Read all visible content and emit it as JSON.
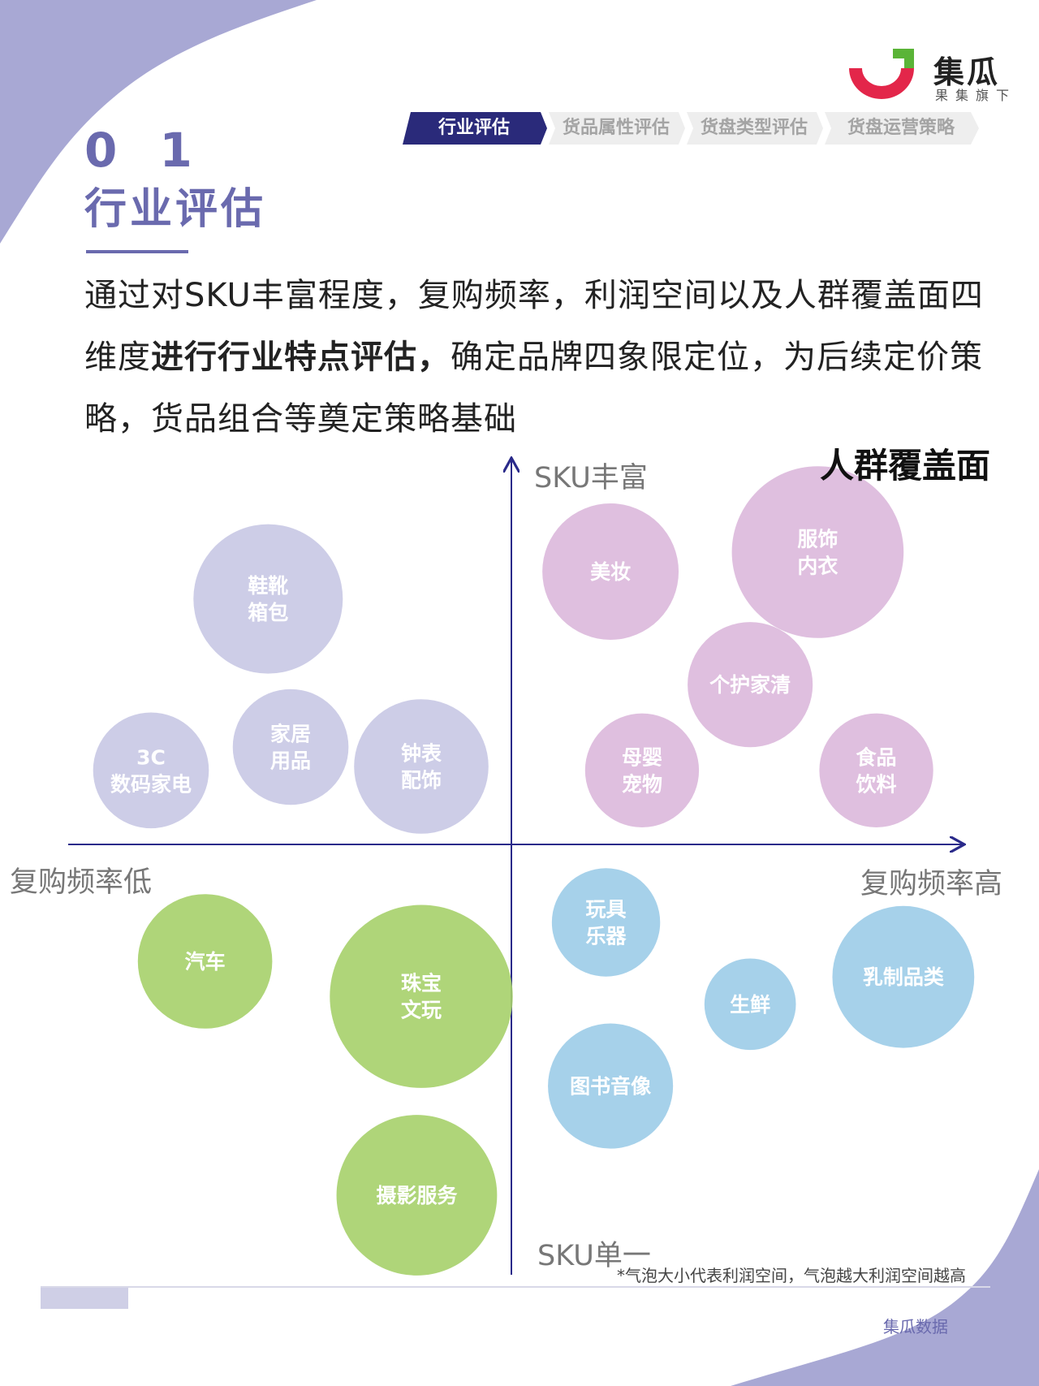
{
  "brand": {
    "name": "集瓜",
    "tagline": "果集旗下",
    "footer": "集瓜数据",
    "colors": {
      "red": "#e3264a",
      "green": "#5ab437",
      "purple": "#6a6aae"
    }
  },
  "tabs": [
    {
      "label": "行业评估",
      "active": true
    },
    {
      "label": "货品属性评估",
      "active": false
    },
    {
      "label": "货盘类型评估",
      "active": false
    },
    {
      "label": "货盘运营策略",
      "active": false
    }
  ],
  "section": {
    "number": "0 1",
    "title": "行业评估"
  },
  "intro": {
    "part1": "通过对SKU丰富程度，复购频率，利润空间以及人群覆盖面四维度",
    "bold": "进行行业特点评估，",
    "part2": "确定品牌四象限定位，为后续定价策略，货品组合等奠定策略基础"
  },
  "chart_data": {
    "type": "bubble-quadrant",
    "legend_title": "人群覆盖面",
    "axes": {
      "y_top": "SKU丰富",
      "y_bottom": "SKU单一",
      "x_left": "复购频率低",
      "x_right": "复购频率高"
    },
    "footnote": "*气泡大小代表利润空间，气泡越大利润空间越高",
    "bubbles": [
      {
        "label": [
          "鞋靴",
          "箱包"
        ],
        "quadrant": "top-left",
        "x": -0.54,
        "y": 0.63,
        "size": 0.8,
        "color": "#c8c8e4"
      },
      {
        "label": [
          "3C",
          "数码家电"
        ],
        "quadrant": "top-left",
        "x": -0.8,
        "y": 0.19,
        "size": 0.62,
        "color": "#c8c8e4"
      },
      {
        "label": [
          "家居",
          "用品"
        ],
        "quadrant": "top-left",
        "x": -0.49,
        "y": 0.25,
        "size": 0.62,
        "color": "#c8c8e4"
      },
      {
        "label": [
          "钟表",
          "配饰"
        ],
        "quadrant": "top-left",
        "x": -0.2,
        "y": 0.2,
        "size": 0.72,
        "color": "#c8c8e4"
      },
      {
        "label": [
          "美妆"
        ],
        "quadrant": "top-right",
        "x": 0.22,
        "y": 0.7,
        "size": 0.73,
        "color": "#dcb8dc"
      },
      {
        "label": [
          "服饰",
          "内衣"
        ],
        "quadrant": "top-right",
        "x": 0.68,
        "y": 0.75,
        "size": 0.92,
        "color": "#dcb8dc"
      },
      {
        "label": [
          "个护家清"
        ],
        "quadrant": "top-right",
        "x": 0.53,
        "y": 0.41,
        "size": 0.67,
        "color": "#dcb8dc"
      },
      {
        "label": [
          "母婴",
          "宠物"
        ],
        "quadrant": "top-right",
        "x": 0.29,
        "y": 0.19,
        "size": 0.61,
        "color": "#dcb8dc"
      },
      {
        "label": [
          "食品",
          "饮料"
        ],
        "quadrant": "top-right",
        "x": 0.81,
        "y": 0.19,
        "size": 0.61,
        "color": "#dcb8dc"
      },
      {
        "label": [
          "汽车"
        ],
        "quadrant": "bottom-left",
        "x": -0.68,
        "y": -0.3,
        "size": 0.72,
        "color": "#a6d06a"
      },
      {
        "label": [
          "珠宝",
          "文玩"
        ],
        "quadrant": "bottom-left",
        "x": -0.2,
        "y": -0.39,
        "size": 0.98,
        "color": "#a6d06a"
      },
      {
        "label": [
          "摄影服务"
        ],
        "quadrant": "bottom-left",
        "x": -0.21,
        "y": -0.9,
        "size": 0.86,
        "color": "#a6d06a"
      },
      {
        "label": [
          "玩具",
          "乐器"
        ],
        "quadrant": "bottom-right",
        "x": 0.21,
        "y": -0.2,
        "size": 0.58,
        "color": "#9ccce8"
      },
      {
        "label": [
          "生鲜"
        ],
        "quadrant": "bottom-right",
        "x": 0.53,
        "y": -0.41,
        "size": 0.49,
        "color": "#9ccce8"
      },
      {
        "label": [
          "乳制品类"
        ],
        "quadrant": "bottom-right",
        "x": 0.87,
        "y": -0.34,
        "size": 0.76,
        "color": "#9ccce8"
      },
      {
        "label": [
          "图书音像"
        ],
        "quadrant": "bottom-right",
        "x": 0.22,
        "y": -0.62,
        "size": 0.67,
        "color": "#9ccce8"
      }
    ]
  }
}
